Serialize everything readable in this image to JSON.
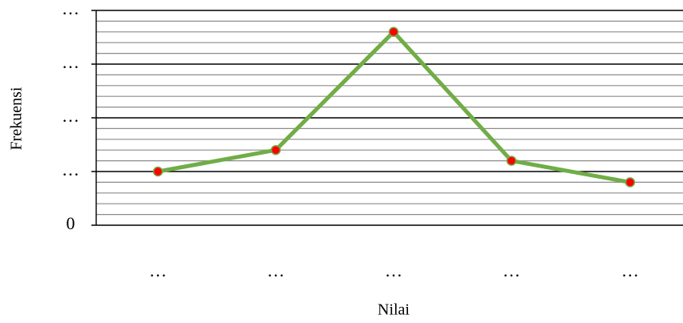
{
  "chart_data": {
    "type": "line",
    "xlabel": "Nilai",
    "ylabel": "Frekuensi",
    "categories": [
      "…",
      "…",
      "…",
      "…",
      "…"
    ],
    "values": [
      5,
      7,
      18,
      6,
      4
    ],
    "ylim": [
      0,
      20
    ],
    "y_ticks": [
      {
        "value": 0,
        "label": "0"
      },
      {
        "value": 5,
        "label": "…"
      },
      {
        "value": 10,
        "label": "…"
      },
      {
        "value": 15,
        "label": "…"
      },
      {
        "value": 20,
        "label": "…"
      }
    ],
    "minor_grid_step": 1,
    "grid": true,
    "colors": {
      "line": "#70ad47",
      "marker_fill": "#ff0000",
      "marker_stroke": "#70ad47",
      "major_grid": "#000000",
      "minor_grid": "#8c8c8c"
    }
  }
}
